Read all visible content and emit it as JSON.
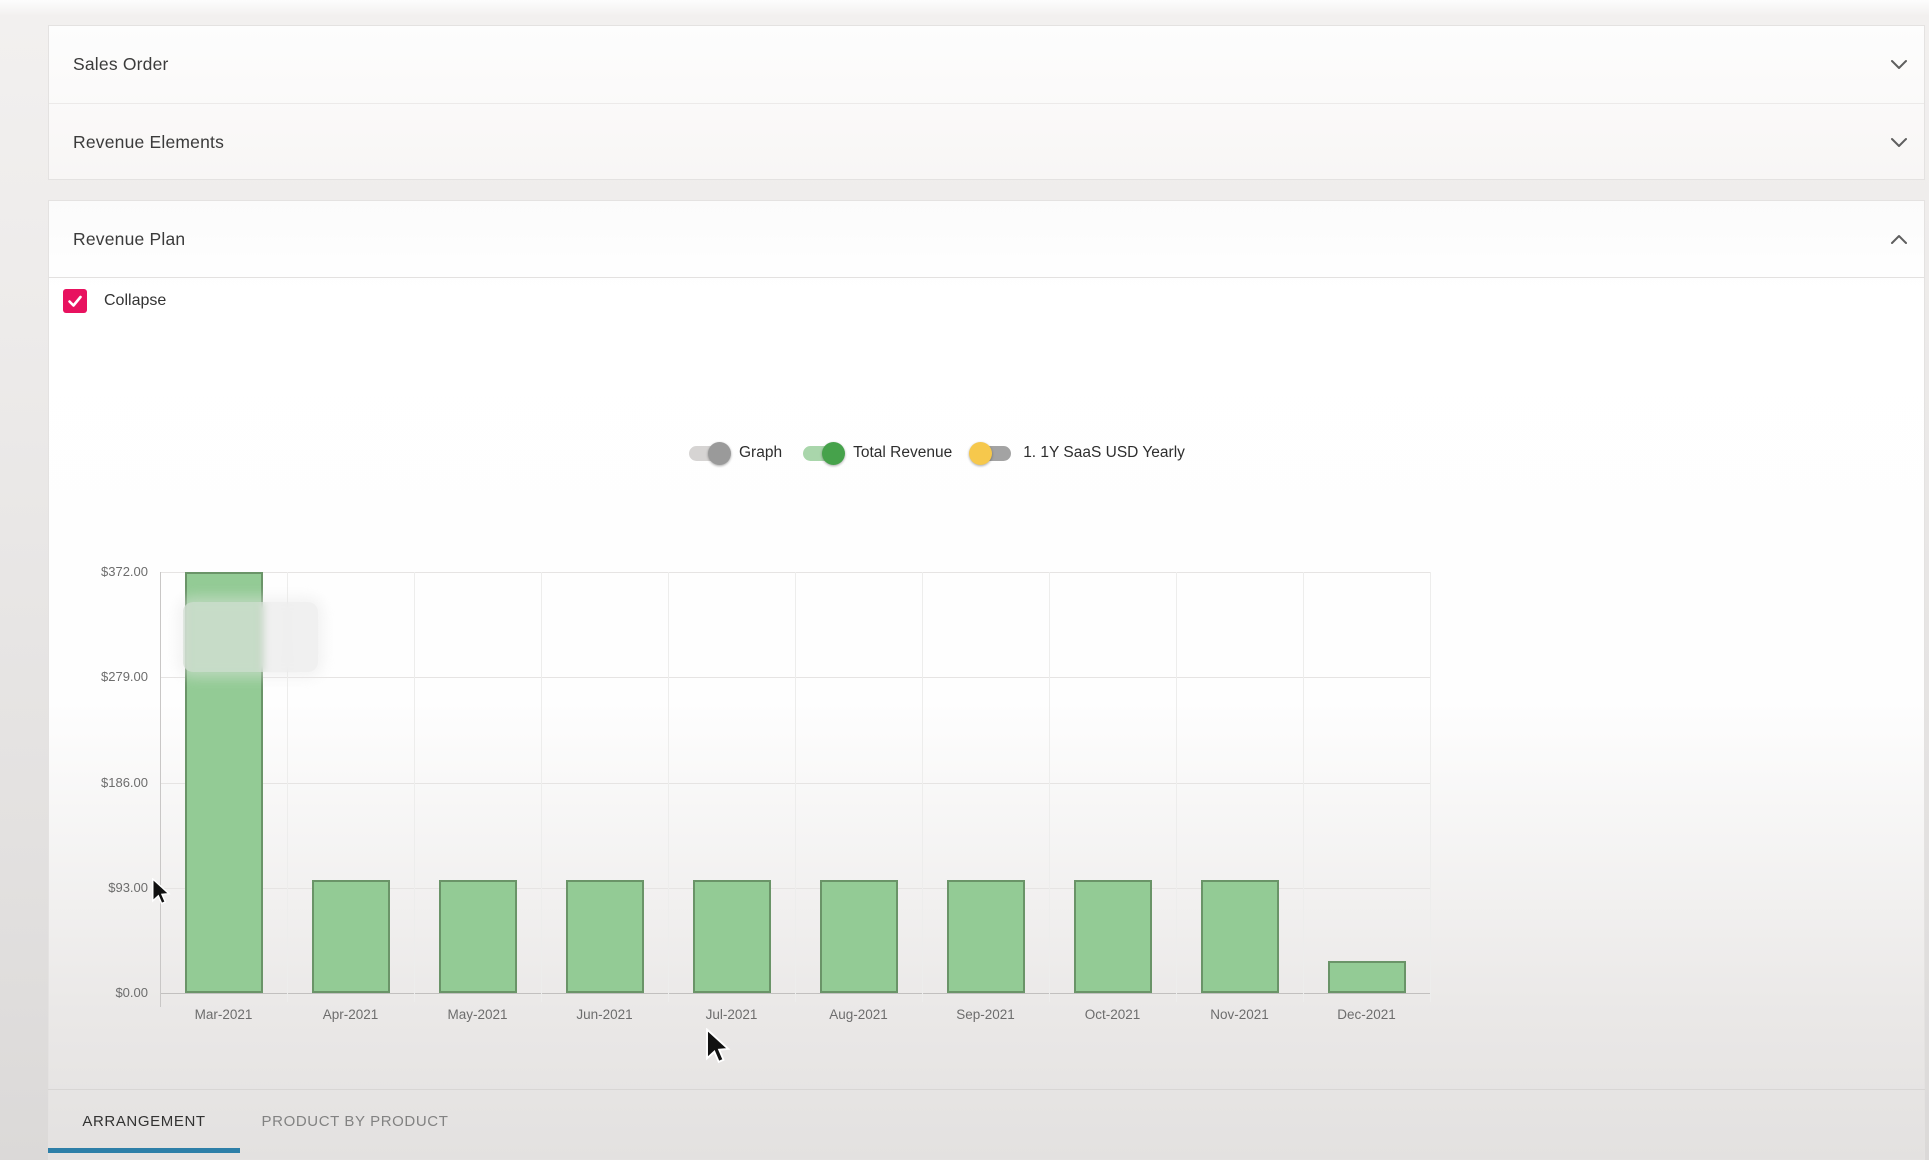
{
  "accordion": {
    "items": [
      {
        "title": "Sales Order",
        "state": "collapsed"
      },
      {
        "title": "Revenue Elements",
        "state": "collapsed"
      }
    ]
  },
  "revenue_plan": {
    "title": "Revenue Plan",
    "state": "expanded",
    "collapse_checkbox": {
      "label": "Collapse",
      "checked": true,
      "color": "#e8125f"
    },
    "legend_toggles": [
      {
        "label": "Graph",
        "on": false,
        "knob_side": "right",
        "knob_color": "#9a9a9a",
        "track_color": "#d6d4d3"
      },
      {
        "label": "Total Revenue",
        "on": true,
        "knob_side": "right",
        "knob_color": "#46a24b",
        "track_color": "#a9d6ab"
      },
      {
        "label": "1. 1Y SaaS USD Yearly",
        "on": false,
        "knob_side": "left",
        "knob_color": "#f6c84c",
        "track_color": "#a3a3a3"
      }
    ],
    "tabs": [
      {
        "label": "ARRANGEMENT",
        "active": true
      },
      {
        "label": "PRODUCT BY PRODUCT",
        "active": false
      }
    ],
    "active_tab_underline_color": "#2d7fa8"
  },
  "chart_data": {
    "type": "bar",
    "title": "",
    "series_name": "Total Revenue",
    "categories": [
      "Mar-2021",
      "Apr-2021",
      "May-2021",
      "Jun-2021",
      "Jul-2021",
      "Aug-2021",
      "Sep-2021",
      "Oct-2021",
      "Nov-2021",
      "Dec-2021"
    ],
    "values": [
      372,
      100,
      100,
      100,
      100,
      100,
      100,
      100,
      100,
      28
    ],
    "y_tick_labels": [
      "$0.00",
      "$93.00",
      "$186.00",
      "$279.00",
      "$372.00"
    ],
    "ylim": [
      0,
      372
    ],
    "grid": true,
    "legend_position": "top",
    "bar_fill": "#93cb95",
    "bar_stroke": "#6a9468"
  }
}
